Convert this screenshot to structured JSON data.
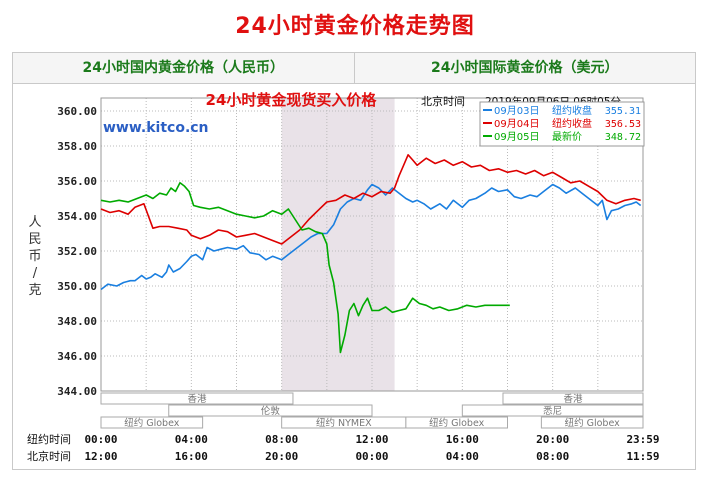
{
  "page": {
    "title": "24小时黄金价格走势图"
  },
  "tabs": [
    {
      "label": "24小时国内黄金价格（人民币）"
    },
    {
      "label": "24小时国际黄金价格（美元）"
    }
  ],
  "colors": {
    "d0903": "#1a7fe0",
    "d0904": "#dd0000",
    "d0905": "#00aa00",
    "title_red": "#e01010",
    "watermark": "#2b5fc4"
  },
  "chart_data": {
    "type": "line",
    "title": "24小时黄金现货买入价格",
    "watermark": "www.kitco.cn",
    "timestamp_label": "北京时间",
    "timestamp": "2019年09月06日 06时05分",
    "ylabel": "人民币/克",
    "ylim": [
      344,
      360
    ],
    "y_ticks": [
      "344.00",
      "346.00",
      "348.00",
      "350.00",
      "352.00",
      "354.00",
      "356.00",
      "358.00",
      "360.00"
    ],
    "x_hours": [
      0,
      24
    ],
    "x_row_labels": [
      "纽约时间",
      "北京时间"
    ],
    "x_ticks_ny": [
      "00:00",
      "04:00",
      "08:00",
      "12:00",
      "16:00",
      "20:00",
      "23:59"
    ],
    "x_ticks_bj": [
      "12:00",
      "16:00",
      "20:00",
      "00:00",
      "04:00",
      "08:00",
      "11:59"
    ],
    "session_shade": [
      8.0,
      13.0
    ],
    "markets": [
      {
        "name": "香港",
        "start": 0,
        "end": 8.5,
        "row": 1
      },
      {
        "name": "伦敦",
        "start": 3.0,
        "end": 12.0,
        "row": 2
      },
      {
        "name": "纽约 Globex",
        "start": 0,
        "end": 4.5,
        "row": 3
      },
      {
        "name": "纽约 NYMEX",
        "start": 8.0,
        "end": 13.5,
        "row": 3
      },
      {
        "name": "纽约 Globex",
        "start": 13.5,
        "end": 18.0,
        "row": 3
      },
      {
        "name": "悉尼",
        "start": 16.0,
        "end": 24.0,
        "row": 2
      },
      {
        "name": "香港",
        "start": 17.8,
        "end": 24.0,
        "row": 1
      },
      {
        "name": "纽约 Globex",
        "start": 19.5,
        "end": 24.0,
        "row": 3
      }
    ],
    "series": [
      {
        "name": "09月03日",
        "legend": "纽约收盘",
        "last": "355.31",
        "color": "#1a7fe0",
        "points": [
          [
            0,
            349.8
          ],
          [
            0.3,
            350.1
          ],
          [
            0.7,
            350.0
          ],
          [
            1.0,
            350.2
          ],
          [
            1.3,
            350.3
          ],
          [
            1.5,
            350.3
          ],
          [
            1.8,
            350.6
          ],
          [
            2.0,
            350.4
          ],
          [
            2.2,
            350.5
          ],
          [
            2.4,
            350.7
          ],
          [
            2.7,
            350.5
          ],
          [
            2.9,
            350.8
          ],
          [
            3.0,
            351.2
          ],
          [
            3.2,
            350.8
          ],
          [
            3.5,
            351.0
          ],
          [
            3.8,
            351.4
          ],
          [
            4.0,
            351.7
          ],
          [
            4.2,
            351.8
          ],
          [
            4.5,
            351.5
          ],
          [
            4.7,
            352.2
          ],
          [
            5.0,
            352.0
          ],
          [
            5.3,
            352.1
          ],
          [
            5.6,
            352.2
          ],
          [
            6.0,
            352.1
          ],
          [
            6.3,
            352.3
          ],
          [
            6.6,
            351.9
          ],
          [
            7.0,
            351.8
          ],
          [
            7.3,
            351.5
          ],
          [
            7.6,
            351.7
          ],
          [
            8.0,
            351.5
          ],
          [
            8.3,
            351.8
          ],
          [
            8.6,
            352.1
          ],
          [
            9.0,
            352.5
          ],
          [
            9.3,
            352.8
          ],
          [
            9.6,
            353.0
          ],
          [
            10.0,
            353.0
          ],
          [
            10.3,
            353.5
          ],
          [
            10.6,
            354.4
          ],
          [
            10.9,
            354.8
          ],
          [
            11.2,
            355.0
          ],
          [
            11.5,
            354.9
          ],
          [
            11.8,
            355.5
          ],
          [
            12.0,
            355.8
          ],
          [
            12.3,
            355.6
          ],
          [
            12.6,
            355.2
          ],
          [
            12.9,
            355.6
          ],
          [
            13.2,
            355.3
          ],
          [
            13.5,
            355.0
          ],
          [
            13.8,
            354.8
          ],
          [
            14.0,
            354.9
          ],
          [
            14.3,
            354.7
          ],
          [
            14.6,
            354.4
          ],
          [
            15.0,
            354.7
          ],
          [
            15.3,
            354.4
          ],
          [
            15.6,
            354.9
          ],
          [
            16.0,
            354.5
          ],
          [
            16.3,
            354.9
          ],
          [
            16.6,
            355.0
          ],
          [
            17.0,
            355.3
          ],
          [
            17.3,
            355.6
          ],
          [
            17.6,
            355.4
          ],
          [
            18.0,
            355.5
          ],
          [
            18.3,
            355.1
          ],
          [
            18.6,
            355.0
          ],
          [
            19.0,
            355.2
          ],
          [
            19.3,
            355.1
          ],
          [
            19.6,
            355.4
          ],
          [
            20.0,
            355.8
          ],
          [
            20.3,
            355.6
          ],
          [
            20.6,
            355.3
          ],
          [
            21.0,
            355.6
          ],
          [
            21.3,
            355.3
          ],
          [
            21.6,
            355.0
          ],
          [
            22.0,
            354.6
          ],
          [
            22.2,
            354.9
          ],
          [
            22.4,
            353.8
          ],
          [
            22.6,
            354.3
          ],
          [
            22.9,
            354.4
          ],
          [
            23.2,
            354.6
          ],
          [
            23.5,
            354.7
          ],
          [
            23.7,
            354.8
          ],
          [
            23.9,
            354.6
          ]
        ]
      },
      {
        "name": "09月04日",
        "legend": "纽约收盘",
        "last": "356.53",
        "color": "#dd0000",
        "points": [
          [
            0,
            354.4
          ],
          [
            0.4,
            354.2
          ],
          [
            0.8,
            354.3
          ],
          [
            1.2,
            354.1
          ],
          [
            1.5,
            354.5
          ],
          [
            1.9,
            354.7
          ],
          [
            2.1,
            354.0
          ],
          [
            2.3,
            353.3
          ],
          [
            2.6,
            353.4
          ],
          [
            3.0,
            353.4
          ],
          [
            3.4,
            353.3
          ],
          [
            3.8,
            353.2
          ],
          [
            4.0,
            352.9
          ],
          [
            4.4,
            352.7
          ],
          [
            4.8,
            352.9
          ],
          [
            5.2,
            353.2
          ],
          [
            5.6,
            353.1
          ],
          [
            6.0,
            352.8
          ],
          [
            6.4,
            352.9
          ],
          [
            6.8,
            353.0
          ],
          [
            7.2,
            352.8
          ],
          [
            7.6,
            352.6
          ],
          [
            8.0,
            352.4
          ],
          [
            8.4,
            352.8
          ],
          [
            8.8,
            353.2
          ],
          [
            9.2,
            353.8
          ],
          [
            9.6,
            354.3
          ],
          [
            10.0,
            354.8
          ],
          [
            10.4,
            354.9
          ],
          [
            10.8,
            355.2
          ],
          [
            11.2,
            355.0
          ],
          [
            11.6,
            355.3
          ],
          [
            12.0,
            355.1
          ],
          [
            12.4,
            355.4
          ],
          [
            12.8,
            355.3
          ],
          [
            13.0,
            355.6
          ],
          [
            13.2,
            356.3
          ],
          [
            13.4,
            356.9
          ],
          [
            13.6,
            357.5
          ],
          [
            13.8,
            357.2
          ],
          [
            14.0,
            356.9
          ],
          [
            14.4,
            357.3
          ],
          [
            14.8,
            357.0
          ],
          [
            15.2,
            357.2
          ],
          [
            15.6,
            356.9
          ],
          [
            16.0,
            357.1
          ],
          [
            16.4,
            356.8
          ],
          [
            16.8,
            356.9
          ],
          [
            17.2,
            356.6
          ],
          [
            17.6,
            356.7
          ],
          [
            18.0,
            356.5
          ],
          [
            18.4,
            356.6
          ],
          [
            18.8,
            356.4
          ],
          [
            19.2,
            356.6
          ],
          [
            19.6,
            356.3
          ],
          [
            20.0,
            356.5
          ],
          [
            20.4,
            356.2
          ],
          [
            20.8,
            355.9
          ],
          [
            21.2,
            356.0
          ],
          [
            21.6,
            355.7
          ],
          [
            22.0,
            355.4
          ],
          [
            22.4,
            354.9
          ],
          [
            22.8,
            354.7
          ],
          [
            23.2,
            354.9
          ],
          [
            23.6,
            355.0
          ],
          [
            23.9,
            354.9
          ]
        ]
      },
      {
        "name": "09月05日",
        "legend": "最新价",
        "last": "348.72",
        "color": "#00aa00",
        "points": [
          [
            0,
            354.9
          ],
          [
            0.4,
            354.8
          ],
          [
            0.8,
            354.9
          ],
          [
            1.2,
            354.8
          ],
          [
            1.6,
            355.0
          ],
          [
            2.0,
            355.2
          ],
          [
            2.3,
            355.0
          ],
          [
            2.6,
            355.3
          ],
          [
            2.9,
            355.2
          ],
          [
            3.1,
            355.6
          ],
          [
            3.3,
            355.4
          ],
          [
            3.5,
            355.9
          ],
          [
            3.7,
            355.7
          ],
          [
            3.9,
            355.4
          ],
          [
            4.1,
            354.6
          ],
          [
            4.4,
            354.5
          ],
          [
            4.8,
            354.4
          ],
          [
            5.2,
            354.5
          ],
          [
            5.6,
            354.3
          ],
          [
            6.0,
            354.1
          ],
          [
            6.4,
            354.0
          ],
          [
            6.8,
            353.9
          ],
          [
            7.2,
            354.0
          ],
          [
            7.6,
            354.3
          ],
          [
            8.0,
            354.1
          ],
          [
            8.3,
            354.4
          ],
          [
            8.6,
            353.8
          ],
          [
            8.9,
            353.2
          ],
          [
            9.2,
            353.3
          ],
          [
            9.5,
            353.1
          ],
          [
            9.8,
            353.0
          ],
          [
            10.0,
            352.4
          ],
          [
            10.1,
            351.2
          ],
          [
            10.3,
            350.2
          ],
          [
            10.5,
            348.4
          ],
          [
            10.6,
            346.2
          ],
          [
            10.8,
            347.2
          ],
          [
            11.0,
            348.6
          ],
          [
            11.2,
            349.0
          ],
          [
            11.4,
            348.3
          ],
          [
            11.6,
            348.9
          ],
          [
            11.8,
            349.3
          ],
          [
            12.0,
            348.6
          ],
          [
            12.3,
            348.6
          ],
          [
            12.6,
            348.8
          ],
          [
            12.9,
            348.5
          ],
          [
            13.2,
            348.6
          ],
          [
            13.5,
            348.7
          ],
          [
            13.8,
            349.3
          ],
          [
            14.1,
            349.0
          ],
          [
            14.4,
            348.9
          ],
          [
            14.7,
            348.7
          ],
          [
            15.0,
            348.8
          ],
          [
            15.4,
            348.6
          ],
          [
            15.8,
            348.7
          ],
          [
            16.2,
            348.9
          ],
          [
            16.6,
            348.8
          ],
          [
            17.0,
            348.9
          ],
          [
            17.4,
            348.9
          ],
          [
            17.8,
            348.9
          ],
          [
            18.1,
            348.9
          ]
        ]
      }
    ]
  }
}
